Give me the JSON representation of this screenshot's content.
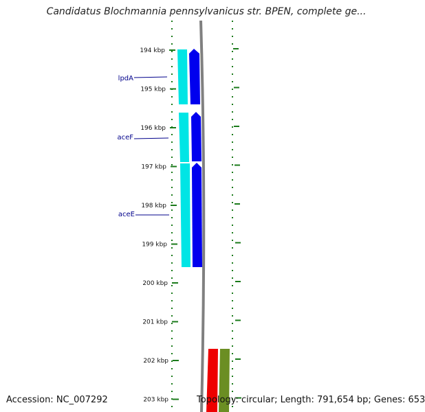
{
  "title": "Candidatus Blochmannia pennsylvanicus str. BPEN, complete ge...",
  "accession_text": "Accession: NC_007292",
  "summary_text": "Topology: circular; Length: 791,654 bp; Genes: 653",
  "ruler": {
    "unit": "kbp",
    "ticks": [
      194,
      195,
      196,
      197,
      198,
      199,
      200,
      201,
      202,
      203
    ],
    "tick_labels": [
      "194 kbp",
      "195 kbp",
      "196 kbp",
      "197 kbp",
      "198 kbp",
      "199 kbp",
      "200 kbp",
      "201 kbp",
      "202 kbp",
      "203 kbp"
    ]
  },
  "gene_labels": [
    "lpdA",
    "aceF",
    "aceE"
  ],
  "colors": {
    "ruler_tick": "#1a7a1a",
    "backbone": "#808080",
    "cds_feature": "#00e5e5",
    "cds_arrow": "#0000ee",
    "label_text": "#00008b",
    "red_feature": "#ee0000",
    "olive_feature": "#6b8e23"
  }
}
